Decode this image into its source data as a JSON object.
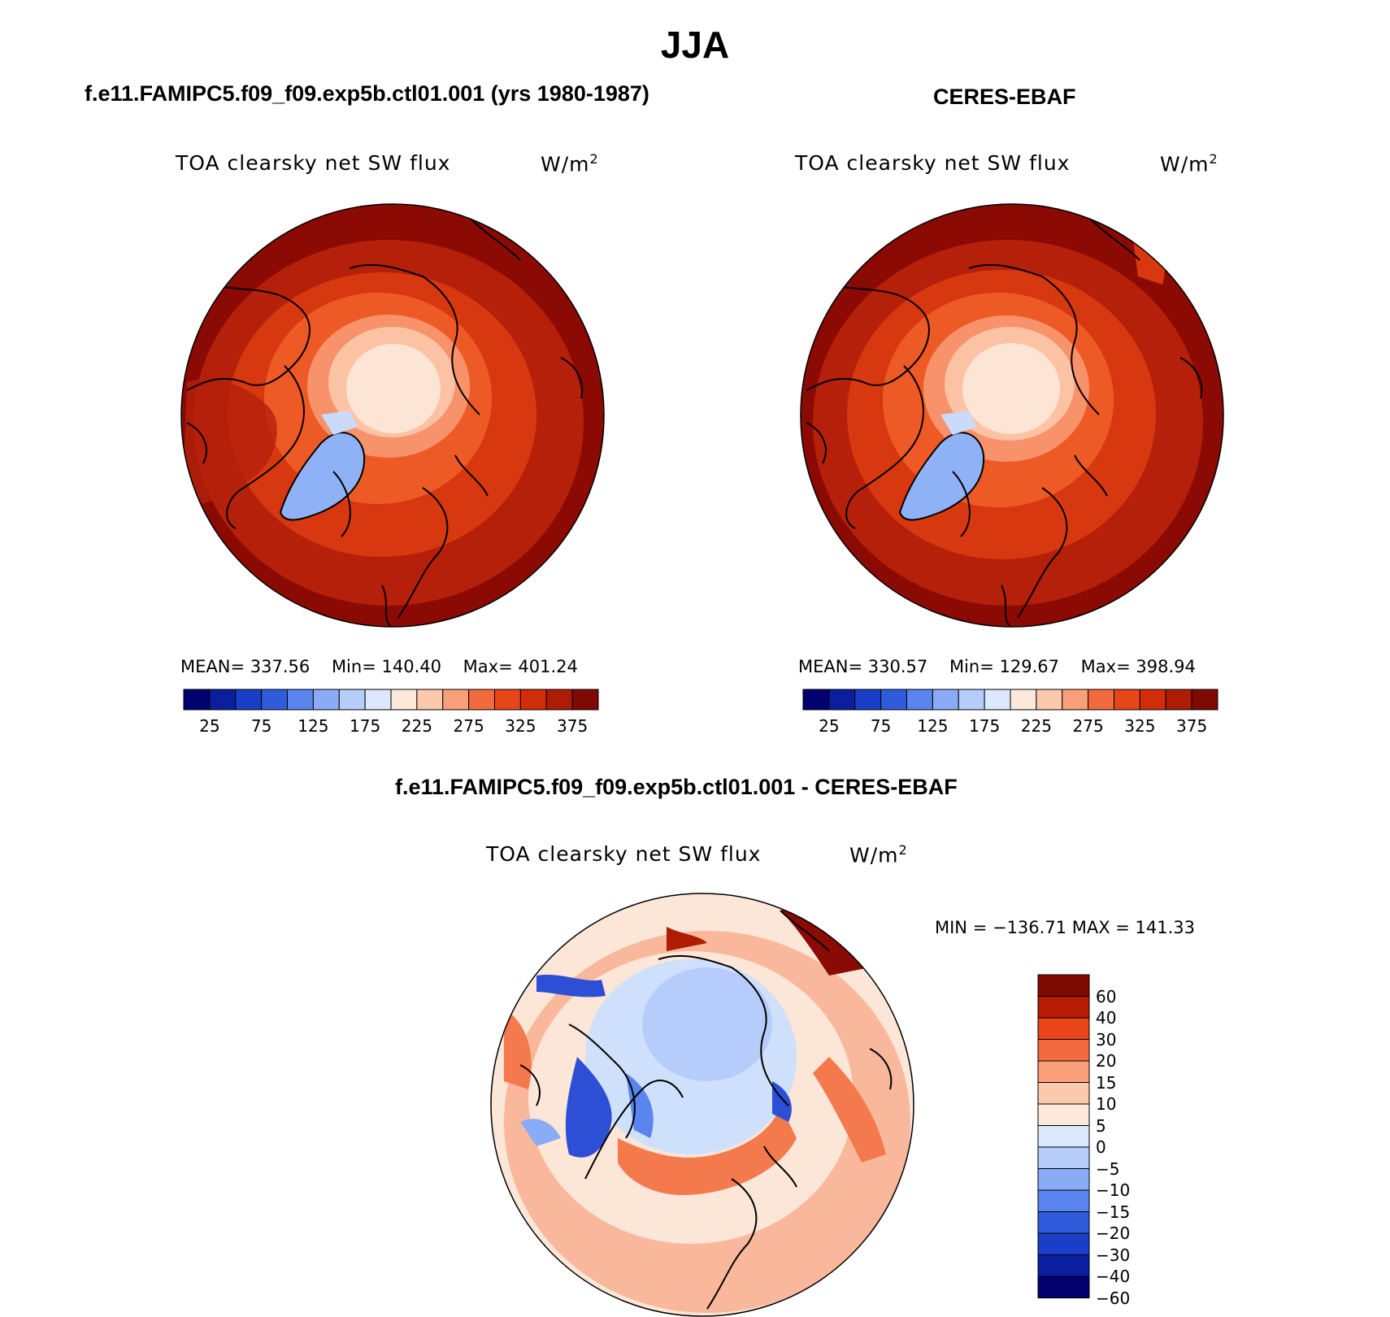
{
  "title": "JJA",
  "panels": {
    "model": {
      "heading": "f.e11.FAMIPC5.f09_f09.exp5b.ctl01.001 (yrs 1980-1987)",
      "variable": "TOA clearsky net SW flux",
      "units": "W/m",
      "units_sup": "2",
      "mean_label": "MEAN=",
      "mean": "337.56",
      "min_label": "Min=",
      "min": "140.40",
      "max_label": "Max=",
      "max": "401.24"
    },
    "obs": {
      "heading": "CERES-EBAF",
      "variable": "TOA clearsky net SW flux",
      "units": "W/m",
      "units_sup": "2",
      "mean_label": "MEAN=",
      "mean": "330.57",
      "min_label": "Min=",
      "min": "129.67",
      "max_label": "Max=",
      "max": "398.94"
    },
    "diff": {
      "heading": "f.e11.FAMIPC5.f09_f09.exp5b.ctl01.001 - CERES-EBAF",
      "variable": "TOA clearsky net SW flux",
      "units": "W/m",
      "units_sup": "2",
      "minmax_text": "MIN = −136.71 MAX = 141.33"
    }
  },
  "colorbar_main": {
    "colors": [
      "#00006e",
      "#0a1fa0",
      "#1a3ec8",
      "#2f5cdc",
      "#5a85ef",
      "#8aacf6",
      "#b6cdfb",
      "#dbe8fd",
      "#fde8da",
      "#fcc9ad",
      "#f9a07a",
      "#f46a3f",
      "#e84519",
      "#d12d08",
      "#ae1c03",
      "#7e0a02"
    ],
    "tick_labels": [
      "25",
      "75",
      "125",
      "175",
      "225",
      "275",
      "325",
      "375"
    ]
  },
  "colorbar_diff": {
    "colors": [
      "#7e0a02",
      "#b51c03",
      "#e84519",
      "#f46a3f",
      "#f9a07a",
      "#fcc9ad",
      "#fde8da",
      "#dbe8fd",
      "#b6cdfb",
      "#8aacf6",
      "#5a85ef",
      "#2f5cdc",
      "#1a3ec8",
      "#0a1fa0",
      "#00006e"
    ],
    "tick_labels": [
      "60",
      "40",
      "30",
      "20",
      "15",
      "10",
      "5",
      "0",
      "−5",
      "−10",
      "−15",
      "−20",
      "−30",
      "−40",
      "−60"
    ]
  },
  "map_palette": {
    "outer_dark": "#8b0a03",
    "mid_red": "#b5200a",
    "orange_red": "#d8380f",
    "orange": "#ee5a26",
    "light_orange": "#f7926a",
    "peach": "#fbc3a3",
    "cream": "#fde5d5",
    "greenland_blue": "#8fb1f5",
    "light_blue": "#c9dafb",
    "diff_base": "#fbe6d8",
    "diff_orange": "#f47a4d",
    "diff_light_blue": "#cfe0fc",
    "diff_blue": "#2c4fd6",
    "diff_dark": "#8b0a03"
  }
}
